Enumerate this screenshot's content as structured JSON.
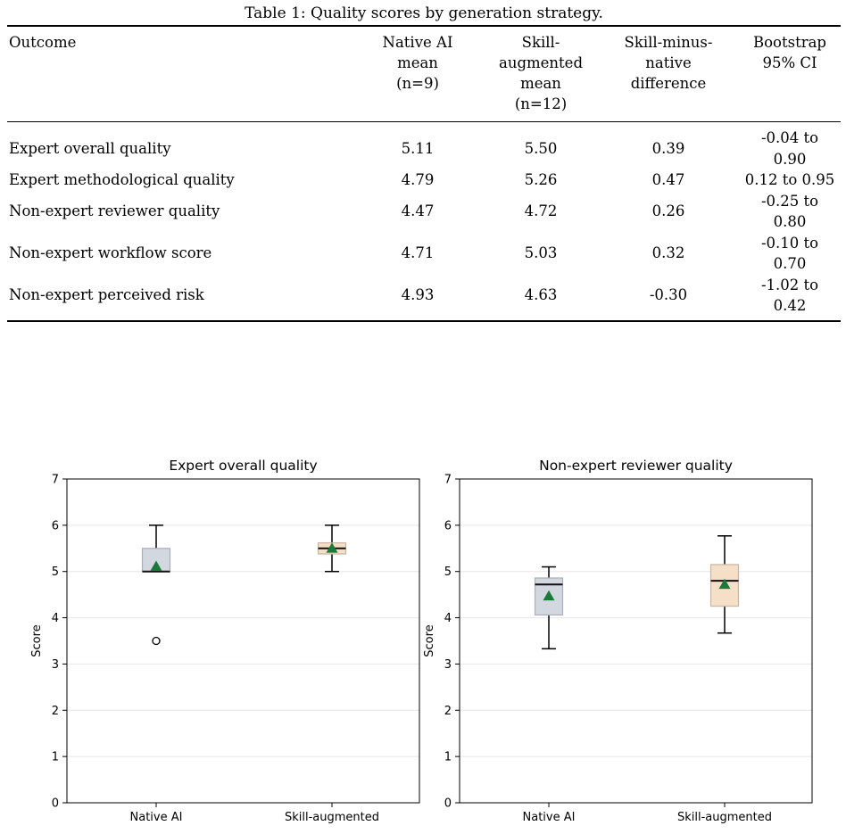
{
  "table": {
    "caption": "Table 1: Quality scores by generation strategy.",
    "headers": [
      [
        "Outcome"
      ],
      [
        "Native AI",
        "mean",
        "(n=9)"
      ],
      [
        "Skill-",
        "augmented",
        "mean",
        "(n=12)"
      ],
      [
        "Skill-minus-",
        "native",
        "difference"
      ],
      [
        "Bootstrap",
        "95% CI"
      ]
    ],
    "rows": [
      [
        "Expert overall quality",
        "5.11",
        "5.50",
        "0.39",
        "-0.04 to 0.90"
      ],
      [
        "Expert methodological quality",
        "4.79",
        "5.26",
        "0.47",
        "0.12 to 0.95"
      ],
      [
        "Non-expert reviewer quality",
        "4.47",
        "4.72",
        "0.26",
        "-0.25 to 0.80"
      ],
      [
        "Non-expert workflow score",
        "4.71",
        "5.03",
        "0.32",
        "-0.10 to 0.70"
      ],
      [
        "Non-expert perceived risk",
        "4.93",
        "4.63",
        "-0.30",
        "-1.02 to 0.42"
      ]
    ]
  },
  "chart_data": [
    {
      "type": "box",
      "title": "Expert overall quality",
      "ylabel": "Score",
      "ylim": [
        0,
        7
      ],
      "yticks": [
        "0",
        "1",
        "2",
        "3",
        "4",
        "5",
        "6",
        "7"
      ],
      "categories": [
        "Native AI",
        "Skill-augmented"
      ],
      "grid": "horizontal",
      "boxes": [
        {
          "name": "Native AI",
          "whisker_low": 5.0,
          "q1": 5.0,
          "median": 5.0,
          "q3": 5.5,
          "whisker_high": 6.0,
          "mean": 5.11,
          "outliers": [
            3.5
          ],
          "color": "#d3d8e0",
          "edge": "#a9b0ba"
        },
        {
          "name": "Skill-augmented",
          "whisker_low": 5.0,
          "q1": 5.38,
          "median": 5.5,
          "q3": 5.62,
          "whisker_high": 6.0,
          "mean": 5.5,
          "outliers": [],
          "color": "#f5dfc6",
          "edge": "#c9b6a2"
        }
      ],
      "mean_marker_color": "#1a7a3a"
    },
    {
      "type": "box",
      "title": "Non-expert reviewer quality",
      "ylabel": "Score",
      "ylim": [
        0,
        7
      ],
      "yticks": [
        "0",
        "1",
        "2",
        "3",
        "4",
        "5",
        "6",
        "7"
      ],
      "categories": [
        "Native AI",
        "Skill-augmented"
      ],
      "grid": "horizontal",
      "boxes": [
        {
          "name": "Native AI",
          "whisker_low": 3.33,
          "q1": 4.06,
          "median": 4.72,
          "q3": 4.86,
          "whisker_high": 5.1,
          "mean": 4.47,
          "outliers": [],
          "color": "#d3d8e0",
          "edge": "#a9b0ba"
        },
        {
          "name": "Skill-augmented",
          "whisker_low": 3.67,
          "q1": 4.25,
          "median": 4.8,
          "q3": 5.15,
          "whisker_high": 5.77,
          "mean": 4.72,
          "outliers": [],
          "color": "#f5dfc6",
          "edge": "#c9b6a2"
        }
      ],
      "mean_marker_color": "#1a7a3a"
    }
  ]
}
